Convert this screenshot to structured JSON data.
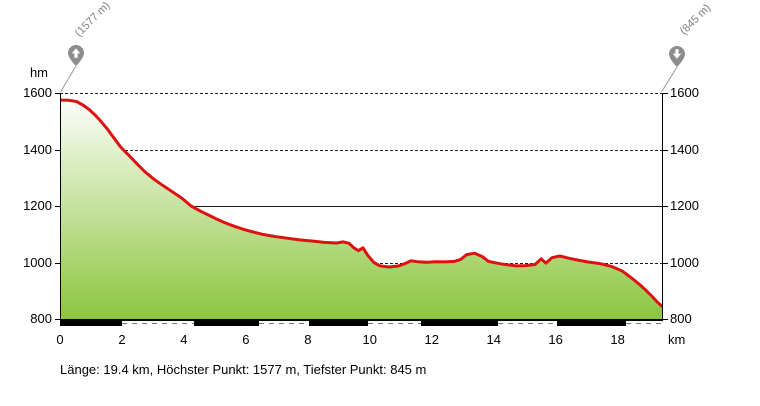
{
  "header": {
    "start_label": "(1577 m)",
    "end_label": "(845 m)"
  },
  "icons": {
    "start": "up-arrow-pin-icon",
    "end": "down-arrow-pin-icon"
  },
  "axes": {
    "y_unit": "hm",
    "x_unit": "km",
    "y_ticks": [
      1600,
      1400,
      1200,
      1000,
      800
    ],
    "x_ticks": [
      0,
      2,
      4,
      6,
      8,
      10,
      12,
      14,
      16,
      18
    ]
  },
  "summary": "Länge: 19.4 km, Höchster Punkt: 1577 m, Tiefster Punkt: 845 m",
  "chart_data": {
    "type": "area",
    "title": "Höhenprofil (elevation profile)",
    "xlabel": "km",
    "ylabel": "hm",
    "xlim": [
      0,
      19.4
    ],
    "ylim": [
      800,
      1600
    ],
    "grid": {
      "dashed_lines_m": [
        1600,
        1400,
        1000
      ],
      "solid_lines_m": [
        1200
      ]
    },
    "line_color": "#dd1111",
    "fill_gradient_top": "#ffffff",
    "fill_gradient_bottom": "#8cc63f",
    "marker_color": "#8d8d8d",
    "x_km": [
      0,
      0.25,
      0.5,
      0.7,
      0.9,
      1.1,
      1.3,
      1.5,
      1.7,
      1.9,
      2.0,
      2.2,
      2.4,
      2.7,
      3.0,
      3.3,
      3.6,
      3.9,
      4.2,
      4.5,
      4.8,
      5.0,
      5.3,
      5.6,
      5.9,
      6.2,
      6.5,
      6.9,
      7.3,
      7.7,
      8.1,
      8.5,
      8.9,
      9.1,
      9.3,
      9.45,
      9.6,
      9.75,
      9.9,
      10.1,
      10.3,
      10.6,
      10.9,
      11.1,
      11.3,
      11.5,
      11.8,
      12.1,
      12.4,
      12.7,
      12.9,
      13.1,
      13.35,
      13.6,
      13.8,
      14.1,
      14.4,
      14.7,
      15.0,
      15.3,
      15.5,
      15.65,
      15.85,
      16.1,
      16.4,
      16.7,
      17.0,
      17.4,
      17.8,
      18.1,
      18.3,
      18.5,
      18.7,
      18.9,
      19.1,
      19.25,
      19.4
    ],
    "y_m": [
      1575,
      1574,
      1570,
      1558,
      1542,
      1522,
      1498,
      1472,
      1442,
      1412,
      1400,
      1378,
      1355,
      1322,
      1295,
      1272,
      1250,
      1228,
      1200,
      1182,
      1166,
      1155,
      1140,
      1128,
      1117,
      1108,
      1100,
      1092,
      1086,
      1080,
      1076,
      1071,
      1069,
      1073,
      1068,
      1052,
      1042,
      1052,
      1026,
      1000,
      988,
      984,
      988,
      996,
      1006,
      1003,
      1001,
      1003,
      1002,
      1004,
      1011,
      1028,
      1033,
      1021,
      1004,
      997,
      992,
      988,
      989,
      993,
      1013,
      998,
      1017,
      1023,
      1015,
      1008,
      1002,
      996,
      985,
      971,
      955,
      938,
      920,
      900,
      878,
      860,
      845
    ],
    "surface_bar": {
      "background": "#000000",
      "dashed_segments_km": [
        [
          2.0,
          4.3
        ],
        [
          6.4,
          8.0
        ],
        [
          9.9,
          11.6
        ],
        [
          14.1,
          16.0
        ],
        [
          18.2,
          19.4
        ]
      ]
    },
    "stats": {
      "length_km": 19.4,
      "max_m": 1577,
      "min_m": 845
    }
  }
}
